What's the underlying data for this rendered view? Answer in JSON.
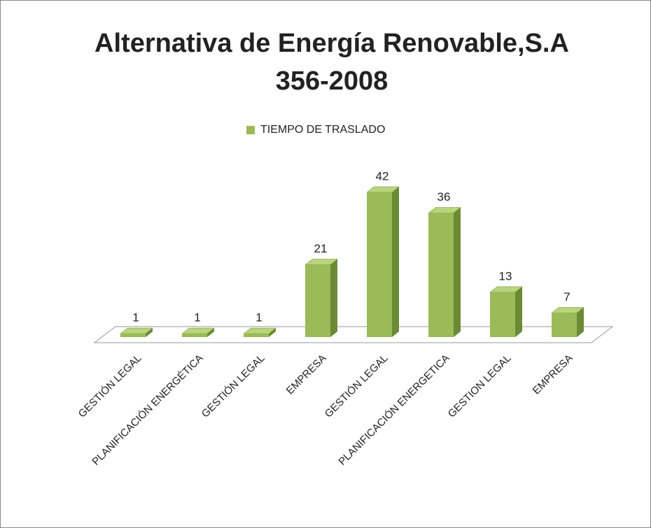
{
  "chart_data": {
    "type": "bar3d",
    "title": [
      "Alternativa de Energía Renovable,S.A",
      "356-2008"
    ],
    "categories": [
      "GESTIÓN LEGAL",
      "PLANIFICACIÓN ENERGÉTICA",
      "GESTIÓN LEGAL",
      "EMPRESA",
      "GESTIÓN LEGAL",
      "PLANIFICACIÓN ENERGETICA",
      "GESTION LEGAL",
      "EMPRESA"
    ],
    "series": [
      {
        "name": "TIEMPO DE TRASLADO",
        "color": "#9bbb59",
        "values": [
          1,
          1,
          1,
          21,
          42,
          36,
          13,
          7
        ]
      }
    ],
    "legend": "top"
  }
}
